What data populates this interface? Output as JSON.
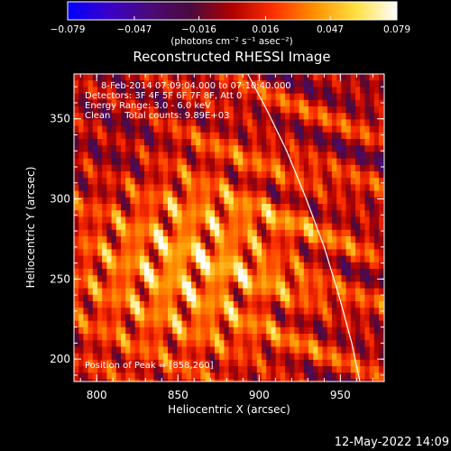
{
  "colorbar": {
    "ticks": [
      -0.079,
      -0.047,
      -0.016,
      0.016,
      0.047,
      0.079
    ],
    "tick_labels": [
      "−0.079",
      "−0.047",
      "−0.016",
      "0.016",
      "0.047",
      "0.079"
    ],
    "units": "(photons cm⁻² s⁻¹ asec⁻²)",
    "range": [
      -0.079,
      0.079
    ],
    "colormap_stops": [
      "#0000ff",
      "#3a00c8",
      "#4a0a78",
      "#4b0a3c",
      "#b00000",
      "#ff3000",
      "#ff9000",
      "#ffe040",
      "#ffffff"
    ]
  },
  "chart_data": {
    "type": "heatmap",
    "title": "Reconstructed RHESSI Image",
    "xlabel": "Heliocentric X (arcsec)",
    "ylabel": "Heliocentric Y (arcsec)",
    "xlim": [
      786,
      977
    ],
    "ylim": [
      186,
      378
    ],
    "xticks": [
      800,
      850,
      900,
      950
    ],
    "yticks": [
      200,
      250,
      300,
      350
    ],
    "info_lines": [
      "8-Feb-2014 07:09:04.000 to 07:10:40.000",
      "Detectors: 3F 4F 5F 6F 7F 8F, Att 0",
      "Energy Range: 3.0 - 6.0 keV",
      "Clean     Total counts: 9.89E+03"
    ],
    "peak_label": "Position of Peak = [858,260]",
    "peak": [
      858,
      260
    ],
    "limb_curve": [
      [
        893,
        378
      ],
      [
        905,
        355
      ],
      [
        917,
        330
      ],
      [
        929,
        300
      ],
      [
        940,
        270
      ],
      [
        949,
        240
      ],
      [
        957,
        210
      ],
      [
        962,
        186
      ]
    ]
  },
  "footer": {
    "timestamp": "12-May-2022 14:09"
  }
}
